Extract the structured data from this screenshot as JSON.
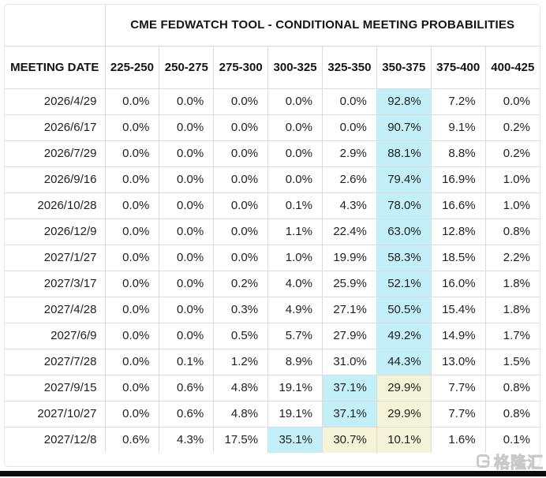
{
  "title": "CME FEDWATCH TOOL - CONDITIONAL MEETING PROBABILITIES",
  "table": {
    "date_header": "MEETING DATE",
    "rate_headers": [
      "225-250",
      "250-275",
      "275-300",
      "300-325",
      "325-350",
      "350-375",
      "375-400",
      "400-425"
    ],
    "rows": [
      {
        "date": "2026/4/29",
        "values": [
          "0.0%",
          "0.0%",
          "0.0%",
          "0.0%",
          "0.0%",
          "92.8%",
          "7.2%",
          "0.0%"
        ],
        "highlights": [
          "",
          "",
          "",
          "",
          "",
          "cyan",
          "",
          ""
        ]
      },
      {
        "date": "2026/6/17",
        "values": [
          "0.0%",
          "0.0%",
          "0.0%",
          "0.0%",
          "0.0%",
          "90.7%",
          "9.1%",
          "0.2%"
        ],
        "highlights": [
          "",
          "",
          "",
          "",
          "",
          "cyan",
          "",
          ""
        ]
      },
      {
        "date": "2026/7/29",
        "values": [
          "0.0%",
          "0.0%",
          "0.0%",
          "0.0%",
          "2.9%",
          "88.1%",
          "8.8%",
          "0.2%"
        ],
        "highlights": [
          "",
          "",
          "",
          "",
          "",
          "cyan",
          "",
          ""
        ]
      },
      {
        "date": "2026/9/16",
        "values": [
          "0.0%",
          "0.0%",
          "0.0%",
          "0.0%",
          "2.6%",
          "79.4%",
          "16.9%",
          "1.0%"
        ],
        "highlights": [
          "",
          "",
          "",
          "",
          "",
          "cyan",
          "",
          ""
        ]
      },
      {
        "date": "2026/10/28",
        "values": [
          "0.0%",
          "0.0%",
          "0.0%",
          "0.1%",
          "4.3%",
          "78.0%",
          "16.6%",
          "1.0%"
        ],
        "highlights": [
          "",
          "",
          "",
          "",
          "",
          "cyan",
          "",
          ""
        ]
      },
      {
        "date": "2026/12/9",
        "values": [
          "0.0%",
          "0.0%",
          "0.0%",
          "1.1%",
          "22.4%",
          "63.0%",
          "12.8%",
          "0.8%"
        ],
        "highlights": [
          "",
          "",
          "",
          "",
          "",
          "cyan",
          "",
          ""
        ]
      },
      {
        "date": "2027/1/27",
        "values": [
          "0.0%",
          "0.0%",
          "0.0%",
          "1.0%",
          "19.9%",
          "58.3%",
          "18.5%",
          "2.2%"
        ],
        "highlights": [
          "",
          "",
          "",
          "",
          "",
          "cyan",
          "",
          ""
        ]
      },
      {
        "date": "2027/3/17",
        "values": [
          "0.0%",
          "0.0%",
          "0.2%",
          "4.0%",
          "25.9%",
          "52.1%",
          "16.0%",
          "1.8%"
        ],
        "highlights": [
          "",
          "",
          "",
          "",
          "",
          "cyan",
          "",
          ""
        ]
      },
      {
        "date": "2027/4/28",
        "values": [
          "0.0%",
          "0.0%",
          "0.3%",
          "4.9%",
          "27.1%",
          "50.5%",
          "15.4%",
          "1.8%"
        ],
        "highlights": [
          "",
          "",
          "",
          "",
          "",
          "cyan",
          "",
          ""
        ]
      },
      {
        "date": "2027/6/9",
        "values": [
          "0.0%",
          "0.0%",
          "0.5%",
          "5.7%",
          "27.9%",
          "49.2%",
          "14.9%",
          "1.7%"
        ],
        "highlights": [
          "",
          "",
          "",
          "",
          "",
          "cyan",
          "",
          ""
        ]
      },
      {
        "date": "2027/7/28",
        "values": [
          "0.0%",
          "0.1%",
          "1.2%",
          "8.9%",
          "31.0%",
          "44.3%",
          "13.0%",
          "1.5%"
        ],
        "highlights": [
          "",
          "",
          "",
          "",
          "",
          "cyan",
          "",
          ""
        ]
      },
      {
        "date": "2027/9/15",
        "values": [
          "0.0%",
          "0.6%",
          "4.8%",
          "19.1%",
          "37.1%",
          "29.9%",
          "7.7%",
          "0.8%"
        ],
        "highlights": [
          "",
          "",
          "",
          "",
          "cyan",
          "yellow",
          "",
          ""
        ]
      },
      {
        "date": "2027/10/27",
        "values": [
          "0.0%",
          "0.6%",
          "4.8%",
          "19.1%",
          "37.1%",
          "29.9%",
          "7.7%",
          "0.8%"
        ],
        "highlights": [
          "",
          "",
          "",
          "",
          "cyan",
          "yellow",
          "",
          ""
        ]
      },
      {
        "date": "2027/12/8",
        "values": [
          "0.6%",
          "4.3%",
          "17.5%",
          "35.1%",
          "30.7%",
          "10.1%",
          "1.6%",
          "0.1%"
        ],
        "highlights": [
          "",
          "",
          "",
          "cyan",
          "yellow",
          "yellow",
          "",
          ""
        ]
      }
    ]
  },
  "colors": {
    "cyan_highlight": "#c2eff8",
    "yellow_highlight": "#f5f3d7",
    "border": "#dcdcdc"
  },
  "watermark": {
    "text": "格隆汇"
  }
}
